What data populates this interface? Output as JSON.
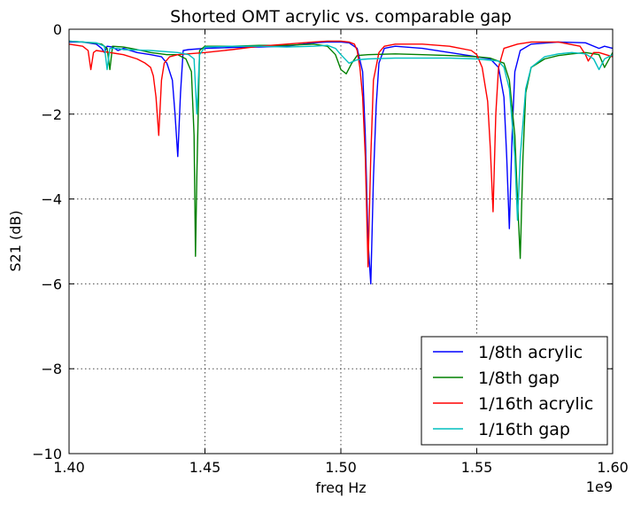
{
  "chart_data": {
    "type": "line",
    "title": "Shorted OMT acrylic vs. comparable gap",
    "xlabel": "freq Hz",
    "ylabel": "S21 (dB)",
    "x_offset_label": "1e9",
    "xlim": [
      1.4,
      1.6
    ],
    "ylim": [
      -10,
      0
    ],
    "x_ticks": [
      1.4,
      1.45,
      1.5,
      1.55,
      1.6
    ],
    "x_tick_labels": [
      "1.40",
      "1.45",
      "1.50",
      "1.55",
      "1.60"
    ],
    "y_ticks": [
      0,
      -2,
      -4,
      -6,
      -8,
      -10
    ],
    "y_tick_labels": [
      "0",
      "−2",
      "−4",
      "−6",
      "−8",
      "−10"
    ],
    "grid": true,
    "legend_position": "lower-right",
    "series": [
      {
        "name": "1/8th acrylic",
        "color": "#0000ff",
        "x": [
          1.4,
          1.405,
          1.41,
          1.412,
          1.413,
          1.414,
          1.416,
          1.418,
          1.42,
          1.425,
          1.43,
          1.434,
          1.436,
          1.438,
          1.439,
          1.44,
          1.441,
          1.442,
          1.444,
          1.45,
          1.46,
          1.47,
          1.48,
          1.49,
          1.495,
          1.5,
          1.503,
          1.506,
          1.508,
          1.509,
          1.51,
          1.511,
          1.512,
          1.513,
          1.514,
          1.516,
          1.52,
          1.53,
          1.54,
          1.55,
          1.555,
          1.558,
          1.56,
          1.561,
          1.562,
          1.563,
          1.564,
          1.566,
          1.57,
          1.58,
          1.59,
          1.595,
          1.597,
          1.6
        ],
        "y": [
          -0.3,
          -0.3,
          -0.35,
          -0.45,
          -0.55,
          -0.4,
          -0.42,
          -0.5,
          -0.45,
          -0.55,
          -0.6,
          -0.65,
          -0.8,
          -1.2,
          -2.0,
          -3.0,
          -1.5,
          -0.5,
          -0.48,
          -0.45,
          -0.43,
          -0.42,
          -0.4,
          -0.32,
          -0.3,
          -0.3,
          -0.32,
          -0.45,
          -1.0,
          -2.5,
          -5.0,
          -6.0,
          -3.5,
          -1.8,
          -0.8,
          -0.45,
          -0.4,
          -0.45,
          -0.55,
          -0.65,
          -0.7,
          -0.9,
          -1.6,
          -3.0,
          -4.7,
          -2.5,
          -1.0,
          -0.5,
          -0.35,
          -0.3,
          -0.32,
          -0.45,
          -0.4,
          -0.45
        ]
      },
      {
        "name": "1/8th gap",
        "color": "#008000",
        "x": [
          1.4,
          1.405,
          1.41,
          1.412,
          1.414,
          1.415,
          1.416,
          1.42,
          1.425,
          1.43,
          1.436,
          1.44,
          1.443,
          1.445,
          1.446,
          1.4465,
          1.447,
          1.448,
          1.45,
          1.46,
          1.47,
          1.48,
          1.49,
          1.495,
          1.498,
          1.5,
          1.502,
          1.504,
          1.506,
          1.51,
          1.52,
          1.53,
          1.54,
          1.55,
          1.555,
          1.56,
          1.562,
          1.564,
          1.565,
          1.566,
          1.567,
          1.568,
          1.57,
          1.575,
          1.58,
          1.585,
          1.59,
          1.595,
          1.597,
          1.6
        ],
        "y": [
          -0.28,
          -0.3,
          -0.33,
          -0.35,
          -0.45,
          -0.95,
          -0.4,
          -0.42,
          -0.48,
          -0.55,
          -0.6,
          -0.6,
          -0.7,
          -1.0,
          -2.5,
          -5.35,
          -3.5,
          -0.5,
          -0.4,
          -0.4,
          -0.38,
          -0.38,
          -0.35,
          -0.4,
          -0.6,
          -0.95,
          -1.05,
          -0.8,
          -0.62,
          -0.6,
          -0.58,
          -0.6,
          -0.62,
          -0.65,
          -0.68,
          -0.8,
          -1.2,
          -2.5,
          -4.0,
          -5.4,
          -3.0,
          -1.5,
          -0.9,
          -0.7,
          -0.62,
          -0.58,
          -0.55,
          -0.6,
          -0.9,
          -0.55
        ]
      },
      {
        "name": "1/16th acrylic",
        "color": "#ff0000",
        "x": [
          1.4,
          1.405,
          1.407,
          1.408,
          1.409,
          1.41,
          1.415,
          1.42,
          1.425,
          1.428,
          1.43,
          1.431,
          1.432,
          1.433,
          1.434,
          1.435,
          1.437,
          1.44,
          1.45,
          1.46,
          1.47,
          1.48,
          1.49,
          1.495,
          1.5,
          1.503,
          1.505,
          1.506,
          1.507,
          1.508,
          1.509,
          1.51,
          1.511,
          1.512,
          1.514,
          1.516,
          1.52,
          1.53,
          1.54,
          1.548,
          1.55,
          1.552,
          1.554,
          1.555,
          1.556,
          1.557,
          1.558,
          1.56,
          1.565,
          1.57,
          1.58,
          1.588,
          1.59,
          1.591,
          1.593,
          1.595,
          1.6
        ],
        "y": [
          -0.35,
          -0.4,
          -0.5,
          -0.95,
          -0.55,
          -0.5,
          -0.55,
          -0.6,
          -0.7,
          -0.8,
          -0.9,
          -1.1,
          -1.6,
          -2.5,
          -1.2,
          -0.8,
          -0.65,
          -0.6,
          -0.55,
          -0.48,
          -0.4,
          -0.35,
          -0.3,
          -0.28,
          -0.28,
          -0.3,
          -0.35,
          -0.5,
          -0.9,
          -1.6,
          -3.0,
          -5.6,
          -3.0,
          -1.2,
          -0.55,
          -0.4,
          -0.35,
          -0.35,
          -0.4,
          -0.5,
          -0.6,
          -0.9,
          -1.7,
          -2.8,
          -4.3,
          -2.0,
          -0.9,
          -0.45,
          -0.35,
          -0.3,
          -0.3,
          -0.4,
          -0.6,
          -0.75,
          -0.55,
          -0.55,
          -0.65
        ]
      },
      {
        "name": "1/16th gap",
        "color": "#00bfbf",
        "x": [
          1.4,
          1.405,
          1.41,
          1.413,
          1.414,
          1.415,
          1.418,
          1.42,
          1.43,
          1.44,
          1.444,
          1.446,
          1.447,
          1.448,
          1.45,
          1.46,
          1.47,
          1.48,
          1.49,
          1.495,
          1.498,
          1.5,
          1.503,
          1.506,
          1.51,
          1.52,
          1.53,
          1.54,
          1.55,
          1.558,
          1.56,
          1.562,
          1.563,
          1.564,
          1.565,
          1.566,
          1.568,
          1.57,
          1.575,
          1.58,
          1.585,
          1.59,
          1.593,
          1.595,
          1.597,
          1.6
        ],
        "y": [
          -0.28,
          -0.3,
          -0.32,
          -0.4,
          -0.95,
          -0.45,
          -0.45,
          -0.48,
          -0.5,
          -0.55,
          -0.6,
          -0.7,
          -2.0,
          -0.6,
          -0.42,
          -0.4,
          -0.4,
          -0.42,
          -0.4,
          -0.38,
          -0.45,
          -0.6,
          -0.8,
          -0.72,
          -0.7,
          -0.68,
          -0.68,
          -0.68,
          -0.7,
          -0.75,
          -0.9,
          -1.4,
          -2.2,
          -3.0,
          -4.5,
          -3.0,
          -1.4,
          -0.9,
          -0.65,
          -0.58,
          -0.55,
          -0.58,
          -0.7,
          -0.95,
          -0.7,
          -0.6
        ]
      }
    ]
  }
}
